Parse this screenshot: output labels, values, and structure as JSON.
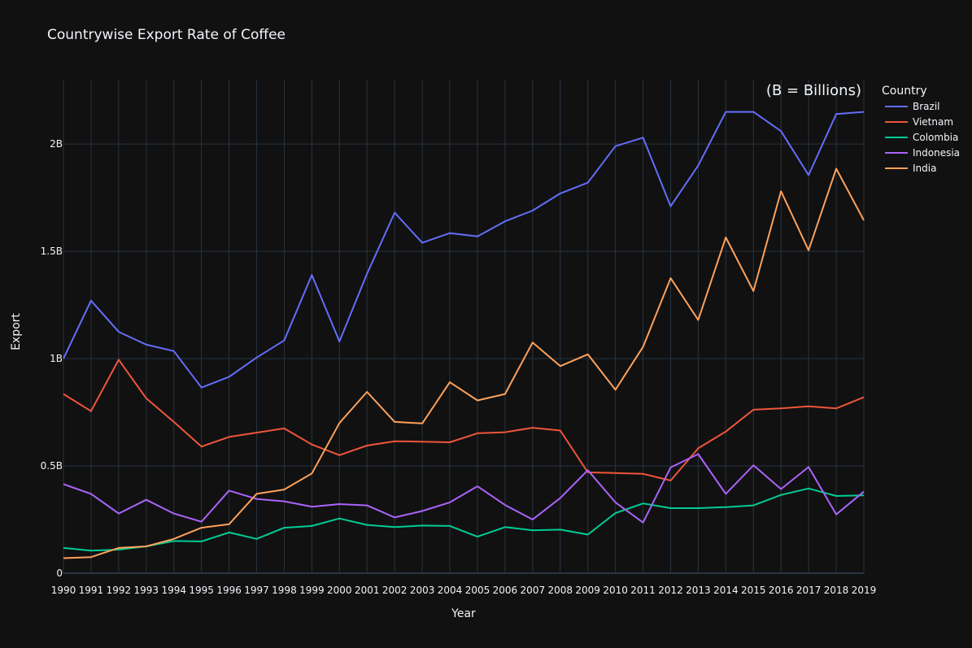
{
  "chart_data": {
    "type": "line",
    "title": "Countrywise Export Rate of Coffee",
    "xlabel": "Year",
    "ylabel": "Export",
    "annotation": "(B = Billions)",
    "legend_title": "Country",
    "legend_position": "top-right",
    "grid": true,
    "ylim": [
      0,
      2.3
    ],
    "y_ticks": [
      0,
      0.5,
      1,
      1.5,
      2
    ],
    "y_tick_labels": [
      "0",
      "0.5B",
      "1B",
      "1.5B",
      "2B"
    ],
    "x": [
      "1990",
      "1991",
      "1992",
      "1993",
      "1994",
      "1995",
      "1996",
      "1997",
      "1998",
      "1999",
      "2000",
      "2001",
      "2002",
      "2003",
      "2004",
      "2005",
      "2006",
      "2007",
      "2008",
      "2009",
      "2010",
      "2011",
      "2012",
      "2013",
      "2014",
      "2015",
      "2016",
      "2017",
      "2018",
      "2019"
    ],
    "series": [
      {
        "name": "Brazil",
        "color": "#636efa",
        "values": [
          1.0,
          1.27,
          1.125,
          1.065,
          1.035,
          0.865,
          0.915,
          1.005,
          1.085,
          1.39,
          1.08,
          1.395,
          1.68,
          1.54,
          1.585,
          1.57,
          1.64,
          1.69,
          1.77,
          1.82,
          1.99,
          2.03,
          1.71,
          1.9,
          2.15,
          2.15,
          2.06,
          1.855,
          2.14,
          2.15
        ]
      },
      {
        "name": "Vietnam",
        "color": "#ef553b",
        "values": [
          0.835,
          0.755,
          0.995,
          0.815,
          0.705,
          0.59,
          0.635,
          0.655,
          0.675,
          0.6,
          0.55,
          0.595,
          0.615,
          0.613,
          0.61,
          0.652,
          0.657,
          0.678,
          0.665,
          0.47,
          0.467,
          0.463,
          0.432,
          0.582,
          0.66,
          0.762,
          0.768,
          0.778,
          0.768,
          0.82
        ]
      },
      {
        "name": "Colombia",
        "color": "#00cc96",
        "values": [
          0.118,
          0.105,
          0.11,
          0.125,
          0.15,
          0.148,
          0.19,
          0.16,
          0.212,
          0.22,
          0.255,
          0.225,
          0.215,
          0.222,
          0.22,
          0.17,
          0.215,
          0.2,
          0.203,
          0.18,
          0.28,
          0.325,
          0.303,
          0.303,
          0.308,
          0.316,
          0.365,
          0.395,
          0.36,
          0.363
        ]
      },
      {
        "name": "Indonesia",
        "color": "#ab63fa",
        "values": [
          0.415,
          0.37,
          0.278,
          0.342,
          0.278,
          0.24,
          0.385,
          0.346,
          0.335,
          0.31,
          0.322,
          0.316,
          0.26,
          0.29,
          0.33,
          0.405,
          0.318,
          0.25,
          0.35,
          0.48,
          0.33,
          0.236,
          0.493,
          0.555,
          0.37,
          0.503,
          0.392,
          0.495,
          0.274,
          0.38
        ]
      },
      {
        "name": "India",
        "color": "#ffa15a",
        "values": [
          0.07,
          0.075,
          0.118,
          0.125,
          0.16,
          0.212,
          0.228,
          0.37,
          0.39,
          0.465,
          0.7,
          0.845,
          0.705,
          0.698,
          0.89,
          0.805,
          0.835,
          1.075,
          0.965,
          1.02,
          0.855,
          1.055,
          1.375,
          1.18,
          1.565,
          1.315,
          1.78,
          1.505,
          1.885,
          1.645
        ]
      }
    ]
  }
}
